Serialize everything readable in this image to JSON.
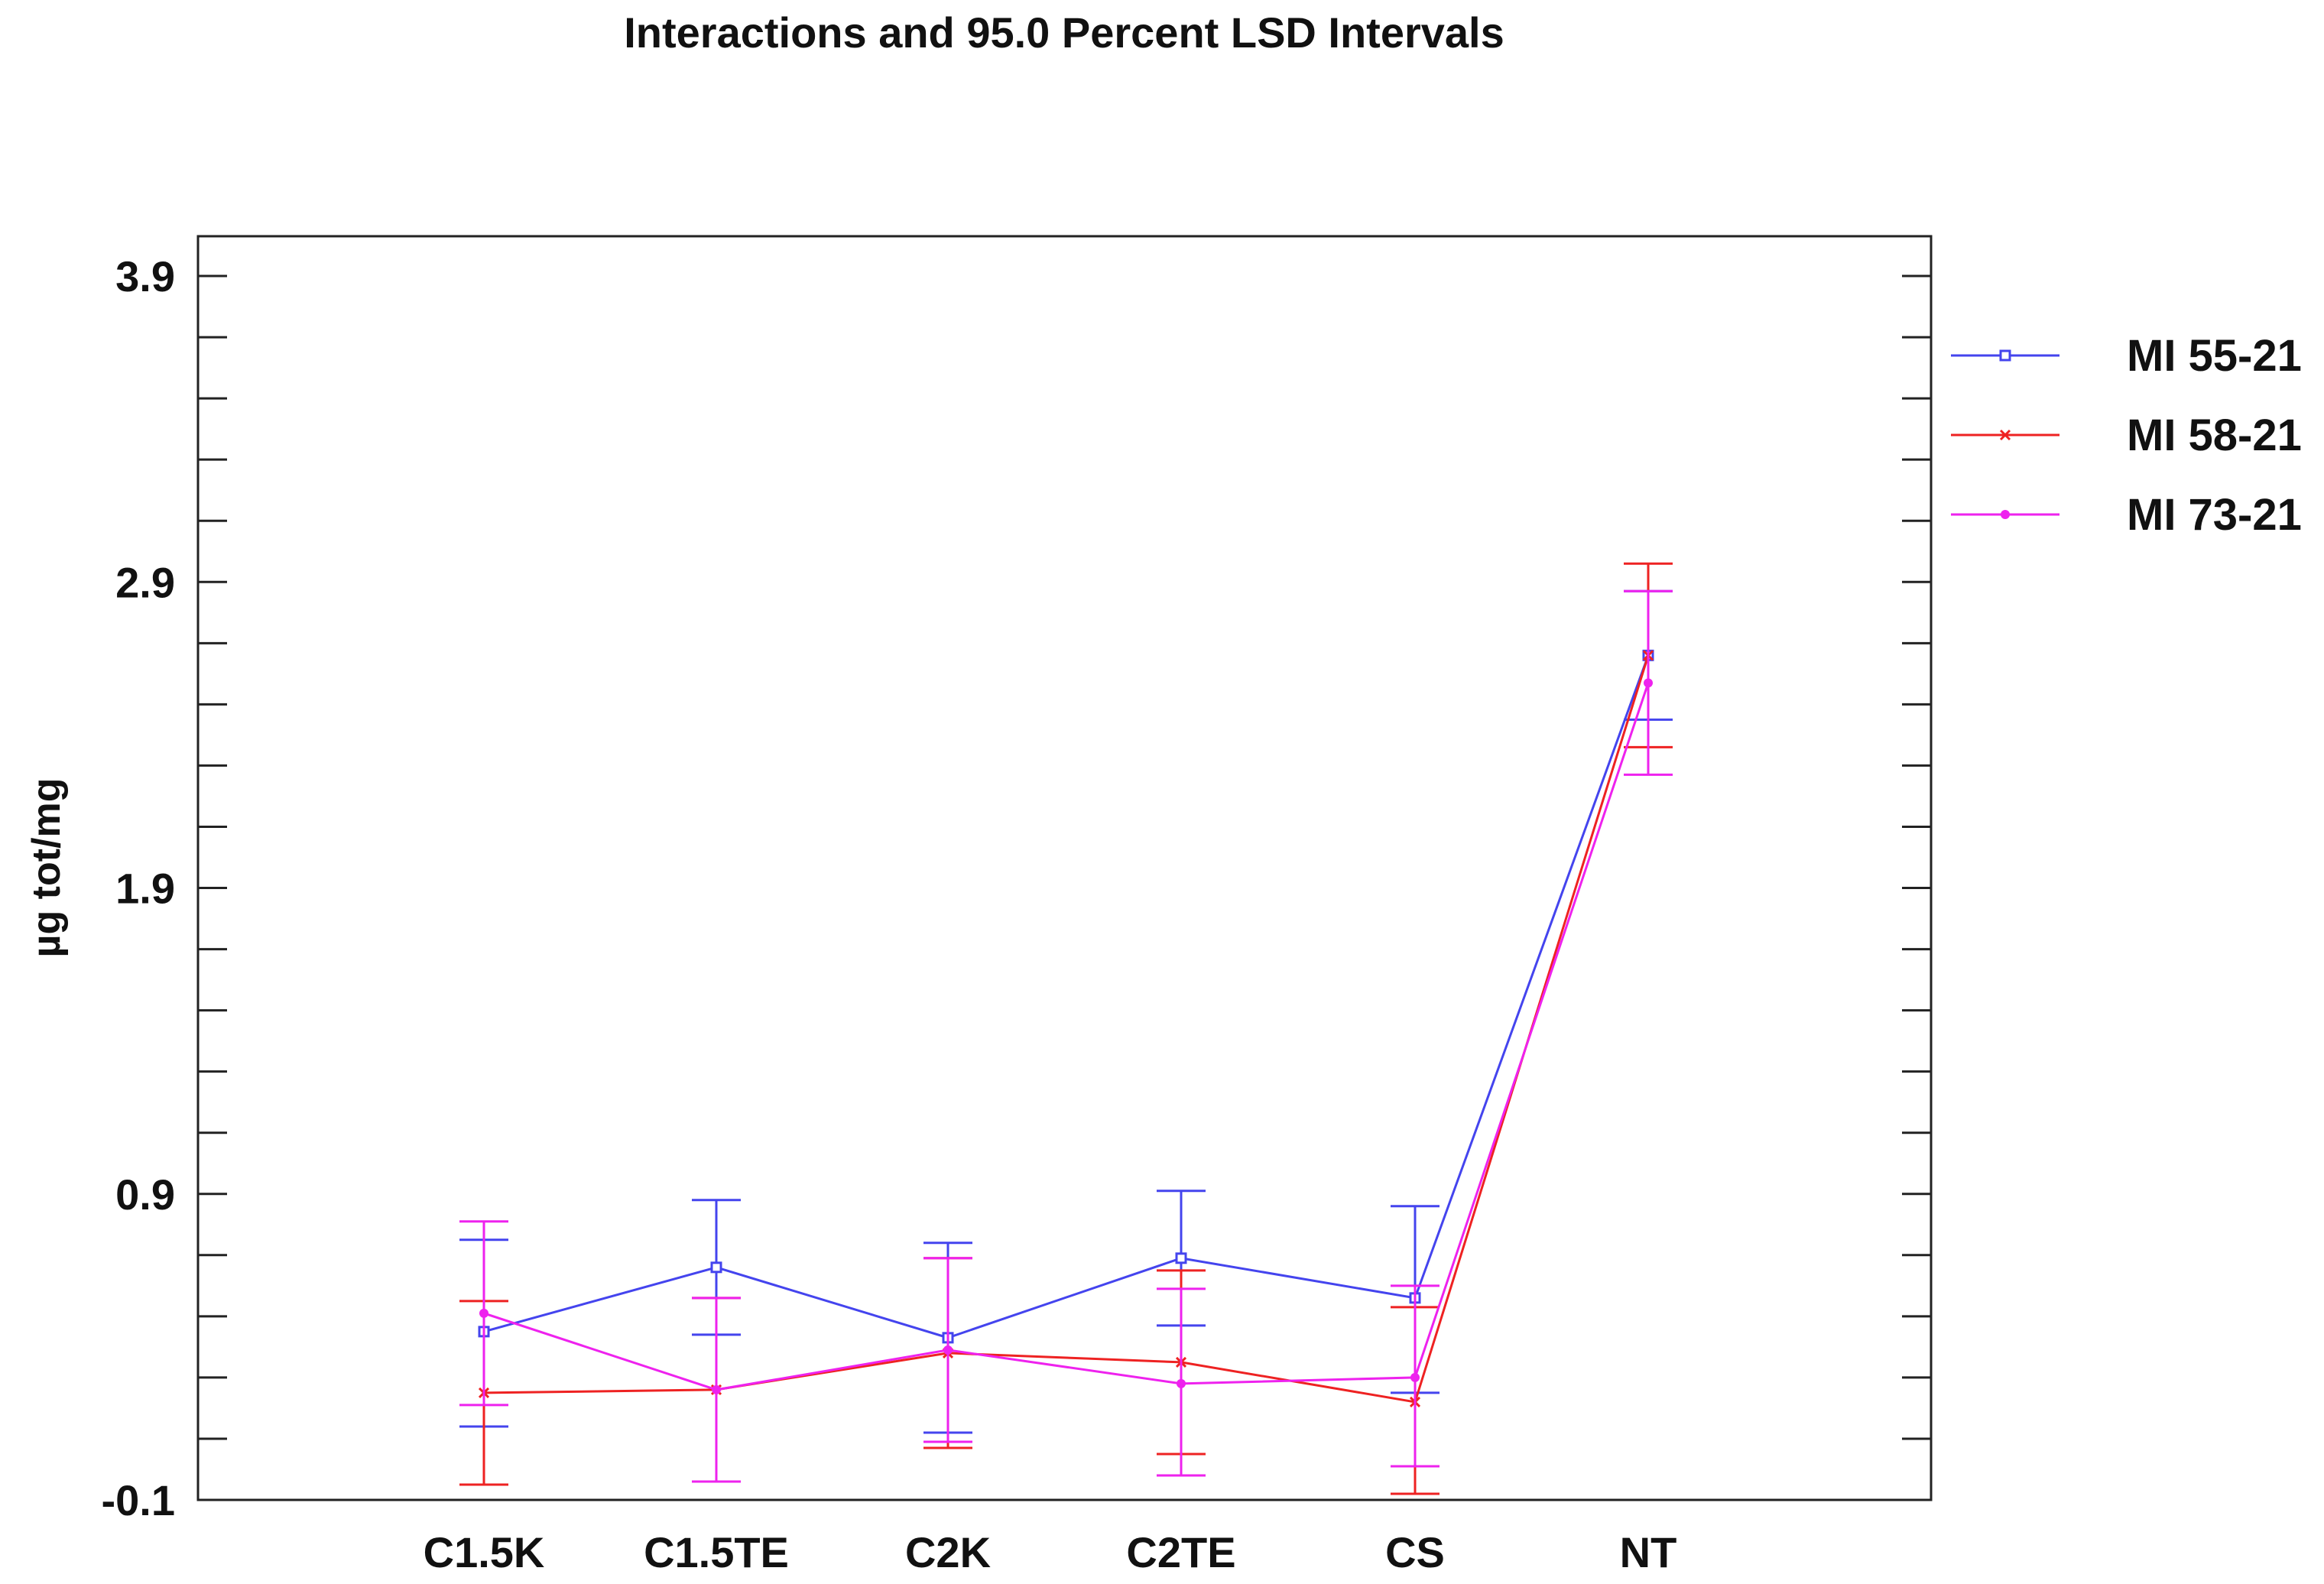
{
  "chart_data": {
    "type": "line",
    "title": "Interactions and 95.0 Percent LSD Intervals",
    "xlabel": "",
    "ylabel": "µg tot/mg",
    "categories": [
      "C1.5K",
      "C1.5TE",
      "C2K",
      "C2TE",
      "CS",
      "NT"
    ],
    "ylim": [
      -0.1,
      4.03
    ],
    "yticks": [
      -0.1,
      0.9,
      1.9,
      2.9,
      3.9
    ],
    "yticks_minor_step": 0.2,
    "grid": false,
    "legend_position": "right",
    "series": [
      {
        "name": "MI 55-21",
        "color": "#4444ee",
        "marker": "square",
        "values": [
          0.45,
          0.66,
          0.43,
          0.69,
          0.56,
          2.66
        ],
        "lower": [
          0.14,
          0.44,
          0.12,
          0.47,
          0.25,
          2.45
        ],
        "upper": [
          0.75,
          0.88,
          0.74,
          0.91,
          0.86,
          2.87
        ]
      },
      {
        "name": "MI 58-21",
        "color": "#ee2222",
        "marker": "x",
        "values": [
          0.25,
          0.26,
          0.38,
          0.35,
          0.22,
          2.66
        ],
        "lower": [
          -0.05,
          -0.04,
          0.07,
          0.05,
          -0.08,
          2.36
        ],
        "upper": [
          0.55,
          0.56,
          0.69,
          0.65,
          0.53,
          2.96
        ]
      },
      {
        "name": "MI 73-21",
        "color": "#ee22ee",
        "marker": "dot",
        "values": [
          0.51,
          0.26,
          0.39,
          0.28,
          0.3,
          2.57
        ],
        "lower": [
          0.21,
          -0.04,
          0.09,
          -0.02,
          0.01,
          2.27
        ],
        "upper": [
          0.81,
          0.56,
          0.69,
          0.59,
          0.6,
          2.87
        ]
      }
    ]
  }
}
